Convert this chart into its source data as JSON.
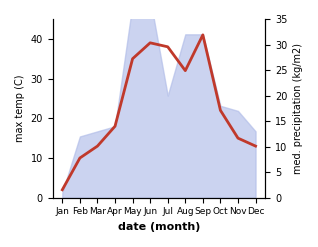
{
  "months": [
    "Jan",
    "Feb",
    "Mar",
    "Apr",
    "May",
    "Jun",
    "Jul",
    "Aug",
    "Sep",
    "Oct",
    "Nov",
    "Dec"
  ],
  "temp": [
    2,
    10,
    13,
    18,
    35,
    39,
    38,
    32,
    41,
    22,
    15,
    13
  ],
  "precip": [
    1,
    12,
    13,
    14,
    38,
    39,
    20,
    32,
    32,
    18,
    17,
    13
  ],
  "temp_ylim": [
    0,
    45
  ],
  "precip_ylim": [
    0,
    35
  ],
  "temp_color": "#c0392b",
  "fill_color": "#b0bce8",
  "fill_alpha": 0.65,
  "xlabel": "date (month)",
  "ylabel_left": "max temp (C)",
  "ylabel_right": "med. precipitation (kg/m2)",
  "temp_yticks": [
    0,
    10,
    20,
    30,
    40
  ],
  "precip_yticks": [
    0,
    5,
    10,
    15,
    20,
    25,
    30,
    35
  ],
  "left_ylim": [
    0,
    45
  ],
  "right_ylim": [
    0,
    35
  ],
  "precip_scale": 1.286,
  "bg_color": "#ffffff"
}
